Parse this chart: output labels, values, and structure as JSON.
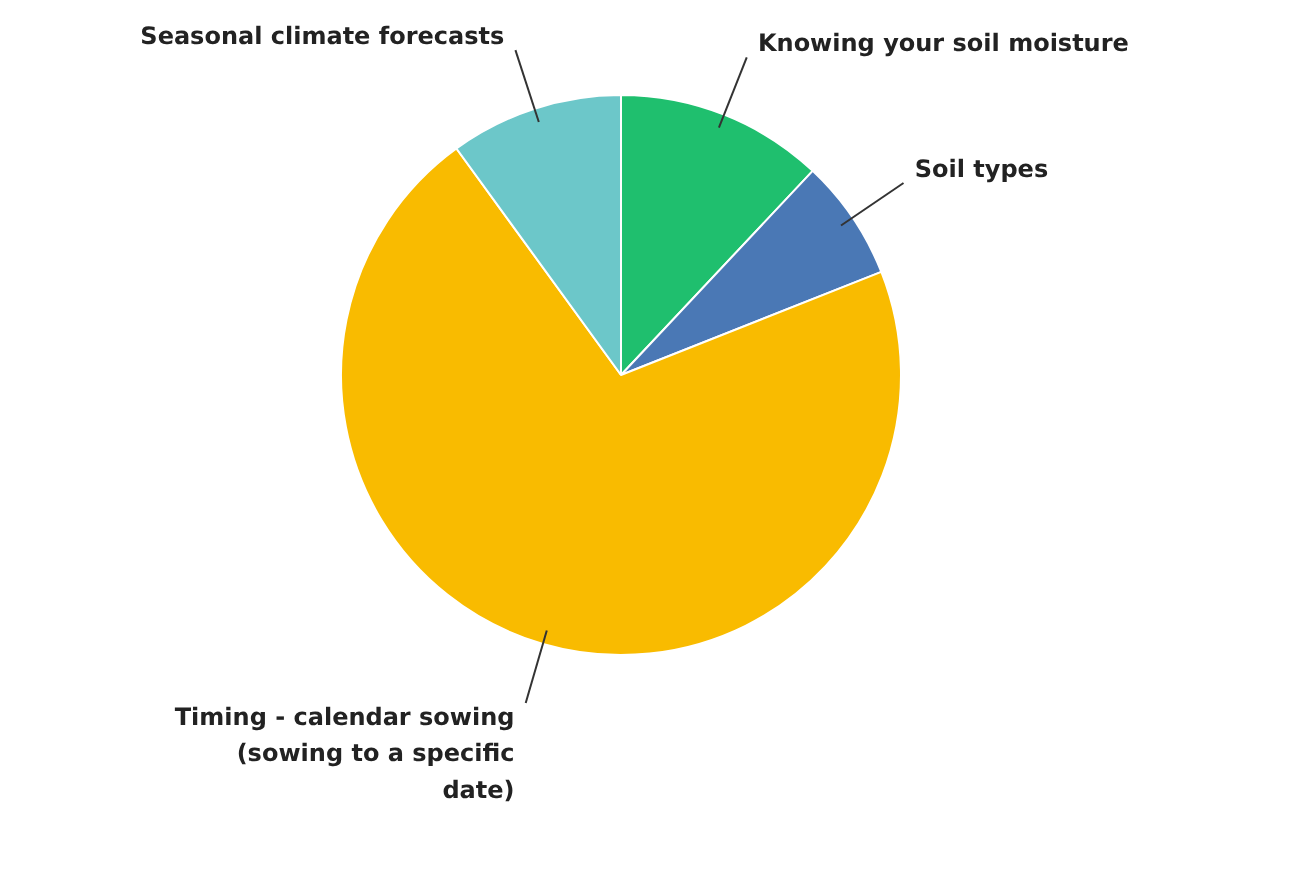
{
  "chart_data": {
    "type": "pie",
    "categories": [
      "Knowing your soil moisture",
      "Soil types",
      "Timing - calendar sowing (sowing to a specific date)",
      "Seasonal climate forecasts"
    ],
    "values": [
      12,
      7,
      71,
      10
    ],
    "colors": [
      "#1fbf6e",
      "#4a78b5",
      "#f9bb00",
      "#6cc7c9"
    ]
  }
}
